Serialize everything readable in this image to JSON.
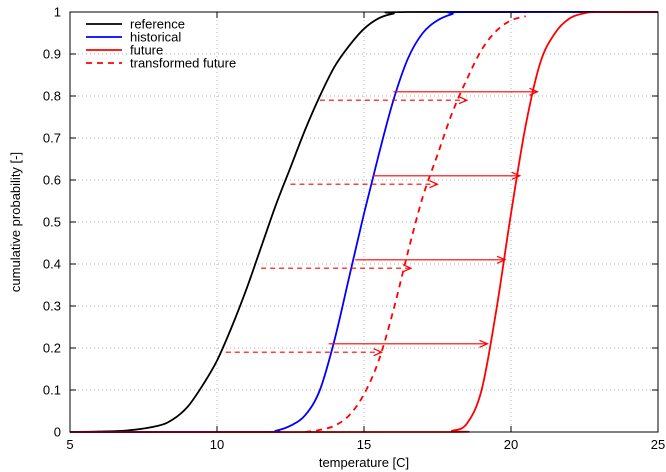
{
  "chart_data": {
    "type": "line",
    "title": "",
    "xlabel": "temperature [C]",
    "ylabel": "cumulative probability [-]",
    "xlim": [
      5,
      25
    ],
    "ylim": [
      0,
      1
    ],
    "x_ticks": [
      5,
      10,
      15,
      20,
      25
    ],
    "y_ticks": [
      0,
      0.1,
      0.2,
      0.3,
      0.4,
      0.5,
      0.6,
      0.7,
      0.8,
      0.9,
      1
    ],
    "x_tick_labels": [
      "5",
      "10",
      "15",
      "20",
      "25"
    ],
    "y_tick_labels": [
      "0",
      "0.1",
      "0.2",
      "0.3",
      "0.4",
      "0.5",
      "0.6",
      "0.7",
      "0.8",
      "0.9",
      "1"
    ],
    "grid": true,
    "legend_position": "top-left",
    "series": [
      {
        "name": "reference",
        "color": "#000000",
        "style": "solid",
        "points": [
          [
            5,
            0
          ],
          [
            6,
            0.001
          ],
          [
            7,
            0.004
          ],
          [
            8,
            0.015
          ],
          [
            8.5,
            0.03
          ],
          [
            9,
            0.06
          ],
          [
            9.5,
            0.11
          ],
          [
            10,
            0.17
          ],
          [
            10.5,
            0.25
          ],
          [
            11,
            0.34
          ],
          [
            11.5,
            0.44
          ],
          [
            12,
            0.54
          ],
          [
            12.5,
            0.63
          ],
          [
            13,
            0.72
          ],
          [
            13.5,
            0.8
          ],
          [
            14,
            0.87
          ],
          [
            14.5,
            0.92
          ],
          [
            15,
            0.96
          ],
          [
            15.5,
            0.985
          ],
          [
            16,
            0.996
          ],
          [
            16.5,
            1
          ],
          [
            25,
            1
          ]
        ]
      },
      {
        "name": "historical",
        "color": "#0000ff",
        "style": "solid",
        "points": [
          [
            5,
            0
          ],
          [
            11.5,
            0
          ],
          [
            12,
            0.003
          ],
          [
            12.5,
            0.015
          ],
          [
            13,
            0.04
          ],
          [
            13.5,
            0.1
          ],
          [
            14,
            0.22
          ],
          [
            14.5,
            0.37
          ],
          [
            15,
            0.52
          ],
          [
            15.5,
            0.66
          ],
          [
            16,
            0.79
          ],
          [
            16.5,
            0.89
          ],
          [
            17,
            0.95
          ],
          [
            17.5,
            0.98
          ],
          [
            18,
            0.995
          ],
          [
            18.5,
            1
          ],
          [
            25,
            1
          ]
        ]
      },
      {
        "name": "future",
        "color": "#ff0000",
        "style": "solid",
        "points": [
          [
            5,
            0
          ],
          [
            17.5,
            0
          ],
          [
            18,
            0.003
          ],
          [
            18.5,
            0.02
          ],
          [
            19,
            0.1
          ],
          [
            19.5,
            0.29
          ],
          [
            20,
            0.52
          ],
          [
            20.5,
            0.73
          ],
          [
            21,
            0.88
          ],
          [
            21.5,
            0.95
          ],
          [
            22,
            0.985
          ],
          [
            22.5,
            0.997
          ],
          [
            23,
            1
          ],
          [
            25,
            1
          ]
        ]
      },
      {
        "name": "transformed future",
        "color": "#ff0000",
        "style": "dashed",
        "points": [
          [
            13,
            0
          ],
          [
            13.5,
            0.005
          ],
          [
            14,
            0.015
          ],
          [
            14.5,
            0.04
          ],
          [
            15,
            0.09
          ],
          [
            15.5,
            0.17
          ],
          [
            16,
            0.29
          ],
          [
            16.5,
            0.43
          ],
          [
            17,
            0.56
          ],
          [
            17.5,
            0.66
          ],
          [
            18,
            0.76
          ],
          [
            18.5,
            0.84
          ],
          [
            19,
            0.91
          ],
          [
            19.5,
            0.955
          ],
          [
            20,
            0.98
          ],
          [
            20.5,
            0.99
          ]
        ]
      }
    ],
    "arrows": [
      {
        "color": "#ff0000",
        "style": "solid",
        "from": [
          13.8,
          0.21
        ],
        "to": [
          19.2,
          0.21
        ]
      },
      {
        "color": "#ff0000",
        "style": "solid",
        "from": [
          14.7,
          0.41
        ],
        "to": [
          19.8,
          0.41
        ]
      },
      {
        "color": "#ff0000",
        "style": "solid",
        "from": [
          15.3,
          0.61
        ],
        "to": [
          20.3,
          0.61
        ]
      },
      {
        "color": "#ff0000",
        "style": "solid",
        "from": [
          16.0,
          0.81
        ],
        "to": [
          20.9,
          0.81
        ]
      },
      {
        "color": "#ff0000",
        "style": "dashed",
        "from": [
          10.3,
          0.19
        ],
        "to": [
          15.6,
          0.19
        ]
      },
      {
        "color": "#ff0000",
        "style": "dashed",
        "from": [
          11.5,
          0.39
        ],
        "to": [
          16.6,
          0.39
        ]
      },
      {
        "color": "#ff0000",
        "style": "dashed",
        "from": [
          12.5,
          0.59
        ],
        "to": [
          17.5,
          0.59
        ]
      },
      {
        "color": "#ff0000",
        "style": "dashed",
        "from": [
          13.5,
          0.79
        ],
        "to": [
          18.5,
          0.79
        ]
      }
    ]
  }
}
